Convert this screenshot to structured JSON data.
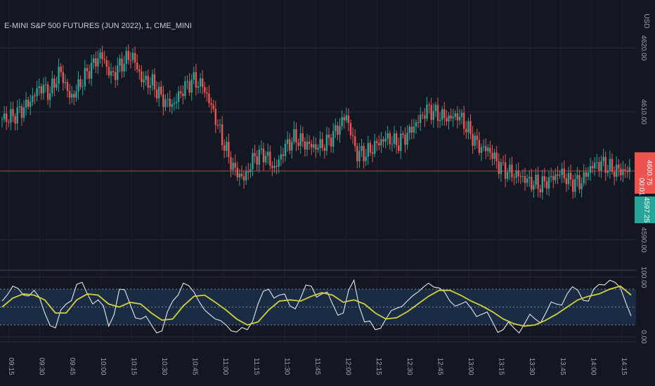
{
  "chart_header": {
    "symbol_title": "E-MINI S&P 500 FUTURES (JUN 2022), 1, CME_MINI",
    "currency": "USD"
  },
  "price_axis": {
    "ticks": [
      {
        "value": 4620,
        "label": "4620.00"
      },
      {
        "value": 4610,
        "label": "4610.00"
      },
      {
        "value": 4590,
        "label": "4590.00"
      }
    ],
    "last_price_label": "4600.75",
    "countdown_label": "00:01",
    "second_price_label": "4597.25"
  },
  "oscillator_axis": {
    "ticks": [
      {
        "value": 100,
        "label": "100.00"
      },
      {
        "value": 0,
        "label": "0.00"
      }
    ],
    "band_levels": [
      80,
      50,
      20
    ]
  },
  "time_axis": {
    "labels": [
      "09:15",
      "09:30",
      "09:45",
      "10:00",
      "10:15",
      "10:30",
      "10:45",
      "11:00",
      "11:15",
      "11:30",
      "11:45",
      "12:00",
      "12:15",
      "12:30",
      "12:45",
      "13:00",
      "13:15",
      "13:30",
      "13:45",
      "14:00",
      "14:15"
    ]
  },
  "colors": {
    "background": "#131722",
    "grid": "#2a2e39",
    "up": "#26a69a",
    "down": "#ef5350",
    "band_fill": "#1c2e48",
    "k_line": "#e6e6e6",
    "d_line": "#d4d03a",
    "last_price_line": "#ef5350"
  },
  "chart_data": [
    {
      "type": "line",
      "description_type": "candlestick",
      "ylim": [
        4588,
        4622
      ],
      "close_path": {
        "times": [
          "09:15",
          "09:20",
          "09:25",
          "09:30",
          "09:35",
          "09:40",
          "09:45",
          "09:50",
          "09:55",
          "10:00",
          "10:05",
          "10:10",
          "10:15",
          "10:20",
          "10:25",
          "10:30",
          "10:35",
          "10:40",
          "10:45",
          "10:50",
          "10:55",
          "11:00",
          "11:05",
          "11:10",
          "11:15",
          "11:20",
          "11:25",
          "11:30",
          "11:35",
          "11:40",
          "11:45",
          "11:50",
          "11:55",
          "12:00",
          "12:05",
          "12:10",
          "12:15",
          "12:20",
          "12:25",
          "12:30",
          "12:35",
          "12:40",
          "12:45",
          "12:50",
          "12:55",
          "13:00",
          "13:05",
          "13:10",
          "13:15",
          "13:20",
          "13:25",
          "13:30",
          "13:35",
          "13:40",
          "13:45",
          "13:50",
          "13:55",
          "14:00",
          "14:05",
          "14:10",
          "14:15",
          "14:18"
        ],
        "values": [
          4609.0,
          4610.0,
          4611.5,
          4614.0,
          4613.0,
          4616.5,
          4612.0,
          4614.5,
          4617.0,
          4619.0,
          4615.5,
          4617.5,
          4619.0,
          4615.0,
          4614.5,
          4612.0,
          4611.0,
          4613.5,
          4615.0,
          4614.0,
          4610.0,
          4605.0,
          4601.0,
          4599.5,
          4603.0,
          4603.5,
          4601.0,
          4604.5,
          4606.0,
          4605.0,
          4604.5,
          4605.0,
          4607.0,
          4609.5,
          4603.5,
          4603.5,
          4605.0,
          4606.0,
          4605.0,
          4606.5,
          4608.5,
          4610.5,
          4609.5,
          4609.0,
          4609.5,
          4607.0,
          4604.5,
          4604.0,
          4601.5,
          4600.5,
          4600.0,
          4599.0,
          4598.5,
          4599.5,
          4600.5,
          4599.0,
          4599.0,
          4601.5,
          4602.0,
          4601.0,
          4600.75,
          4600.75
        ]
      }
    },
    {
      "type": "line",
      "description_type": "stochastic oscillator",
      "ylim": [
        0,
        100
      ],
      "bands": [
        80,
        50,
        20
      ],
      "series": [
        {
          "values": [
            60,
            85,
            70,
            78,
            40,
            15,
            55,
            88,
            72,
            62,
            18,
            80,
            55,
            30,
            20,
            10,
            60,
            90,
            75,
            45,
            30,
            20,
            8,
            12,
            55,
            80,
            70,
            52,
            65,
            85,
            72,
            55,
            40,
            95,
            25,
            12,
            30,
            48,
            60,
            75,
            90,
            82,
            60,
            55,
            48,
            38,
            25,
            12,
            15,
            22,
            30,
            40,
            55,
            72,
            78,
            60,
            88,
            95,
            82,
            35
          ]
        },
        {
          "values": [
            50,
            65,
            72,
            70,
            62,
            40,
            40,
            62,
            72,
            70,
            55,
            50,
            58,
            55,
            40,
            28,
            30,
            52,
            68,
            70,
            58,
            45,
            30,
            20,
            25,
            45,
            60,
            62,
            60,
            68,
            74,
            70,
            58,
            62,
            55,
            40,
            30,
            32,
            42,
            55,
            68,
            78,
            78,
            70,
            60,
            52,
            42,
            30,
            22,
            18,
            20,
            28,
            38,
            50,
            62,
            68,
            72,
            80,
            85,
            70
          ]
        }
      ]
    }
  ]
}
